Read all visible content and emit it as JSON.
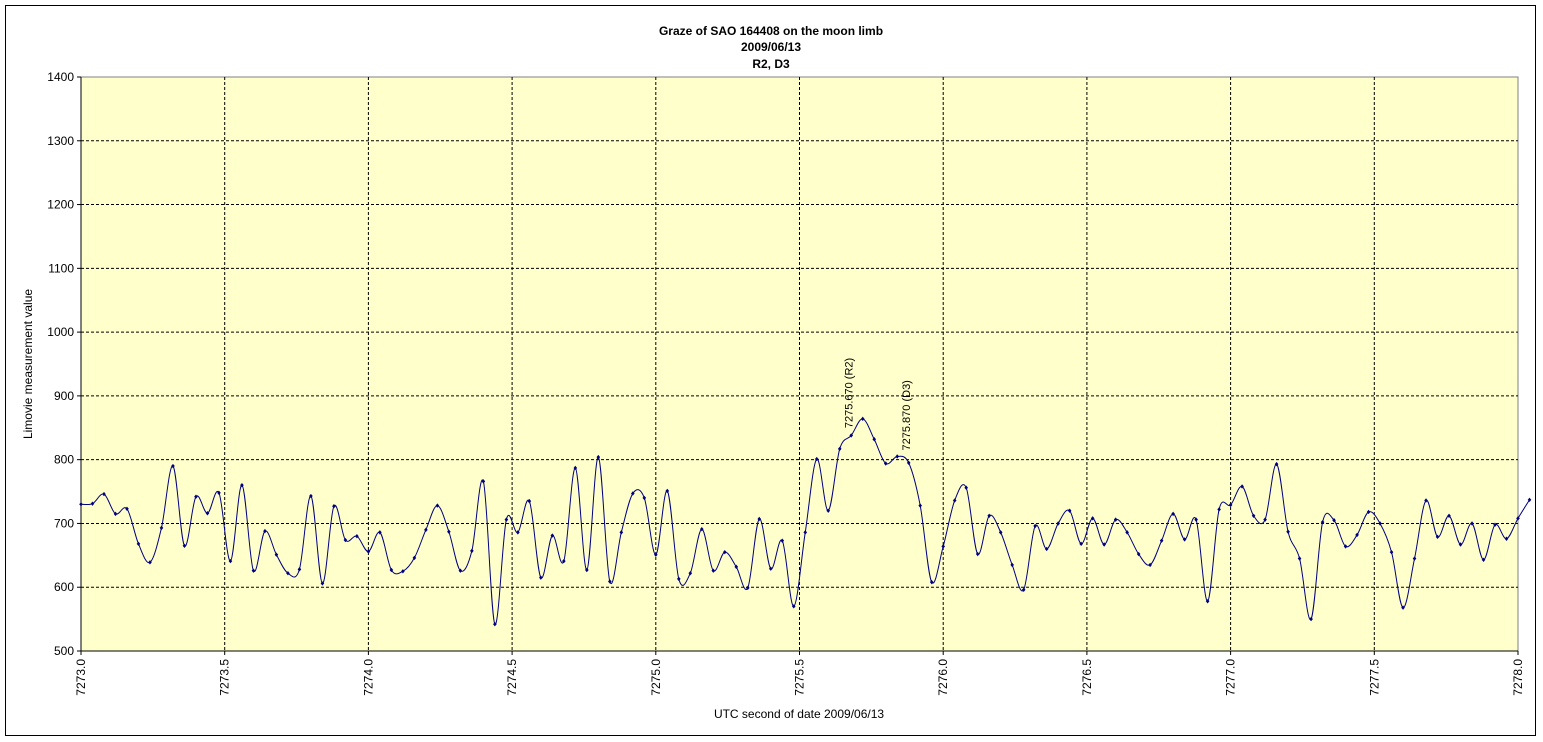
{
  "chart_data": {
    "type": "line",
    "title": "Graze of SAO  164408 on the moon limb",
    "subtitle": [
      "2009/06/13",
      "R2, D3"
    ],
    "xlabel": "UTC  second of date 2009/06/13",
    "ylabel": "Limovie measurement value",
    "xlim": [
      7273.0,
      7278.0
    ],
    "ylim": [
      500,
      1400
    ],
    "x_tick_step": 0.5,
    "y_tick_step": 100,
    "x_tick_labels": [
      "7273.0",
      "7273.5",
      "7274.0",
      "7274.5",
      "7275.0",
      "7275.5",
      "7276.0",
      "7276.5",
      "7277.0",
      "7277.5",
      "7278.0"
    ],
    "y_tick_labels": [
      "500",
      "600",
      "700",
      "800",
      "900",
      "1000",
      "1100",
      "1200",
      "1300",
      "1400"
    ],
    "grid": true,
    "plot_bg": "#FFFFCC",
    "series_color": "#000080",
    "annotations": [
      {
        "x": 7275.67,
        "y": 840,
        "text": "7275.670 (R2)"
      },
      {
        "x": 7275.87,
        "y": 805,
        "text": "7275.870 (D3)"
      }
    ],
    "series": [
      {
        "start": 7273.0,
        "step": 0.04,
        "values": [
          730,
          731,
          746,
          715,
          723,
          668,
          639,
          693,
          790,
          665,
          742,
          716,
          748,
          641,
          760,
          626,
          688,
          651,
          622,
          628,
          743,
          606,
          727,
          674,
          680,
          656,
          686,
          627,
          625,
          646,
          690,
          728,
          687,
          626,
          657,
          766,
          542,
          706,
          686,
          735,
          615,
          681,
          641,
          787,
          627,
          804,
          609,
          686,
          747,
          740,
          651,
          751,
          613,
          622,
          691,
          626,
          655,
          632,
          599,
          707,
          629,
          673,
          570,
          686,
          801,
          720,
          817,
          838,
          864,
          832,
          794,
          805,
          795,
          728,
          608,
          664,
          736,
          756,
          652,
          712,
          686,
          635,
          596,
          696,
          660,
          700,
          720,
          668,
          708,
          667,
          706,
          686,
          652,
          635,
          673,
          715,
          675,
          706,
          578,
          722,
          729,
          758,
          712,
          706,
          793,
          687,
          645,
          550,
          702,
          705,
          664,
          682,
          718,
          700,
          655,
          568,
          645,
          736,
          679,
          712,
          667,
          700,
          643,
          698,
          676,
          708,
          737
        ]
      }
    ]
  }
}
